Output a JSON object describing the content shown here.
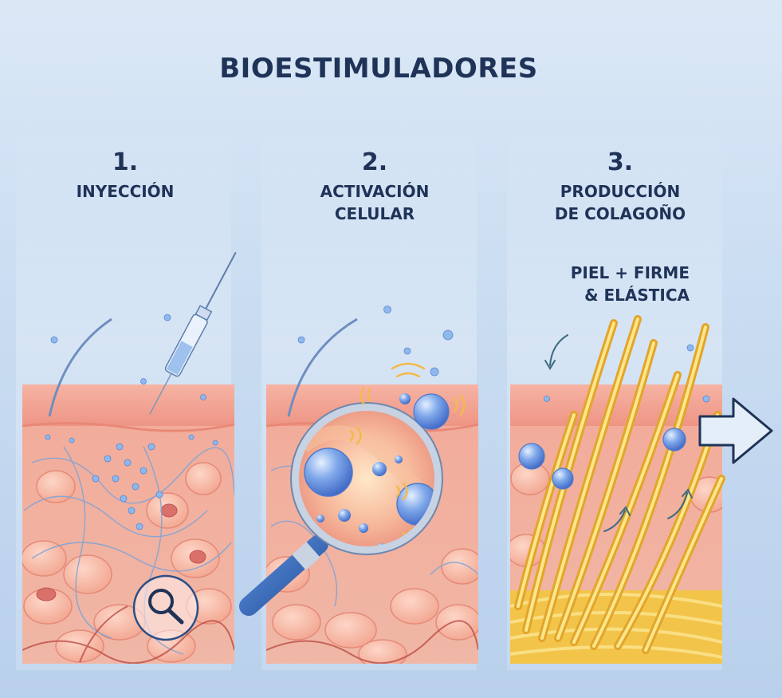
{
  "title": "BIOESTIMULADORES",
  "steps": [
    {
      "number": "1.",
      "label_lines": [
        "INYECCIÓN"
      ]
    },
    {
      "number": "2.",
      "label_lines": [
        "ACTIVACIÓN",
        "CELULAR"
      ]
    },
    {
      "number": "3.",
      "label_lines": [
        "PRODUCCIÓN",
        "DE COLAGOÑO"
      ]
    }
  ],
  "benefit_lines": [
    "PIEL + FIRME",
    "& ELÁSTICA"
  ],
  "colors": {
    "text": "#1f3358",
    "skin_top": "#f4a99a",
    "skin_cells": "#f7b7a6",
    "collagen": "#f6cf54",
    "particle": "#6a9be0"
  }
}
